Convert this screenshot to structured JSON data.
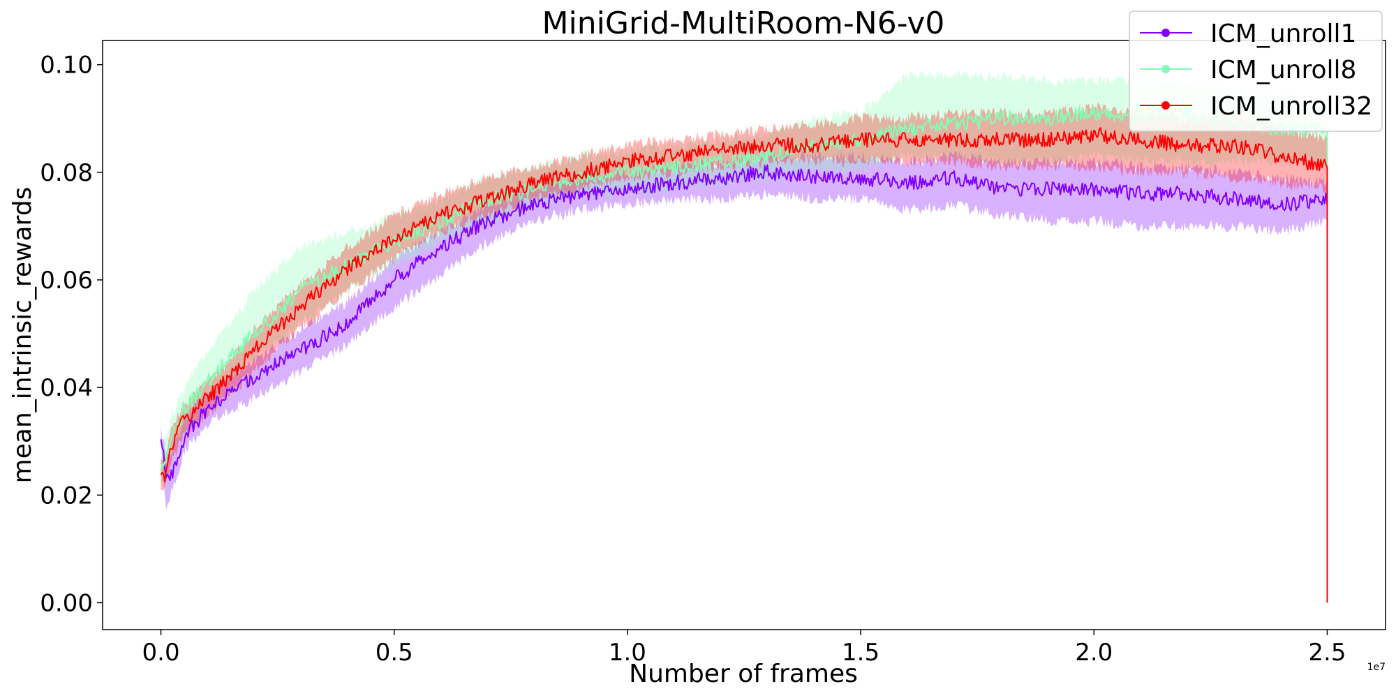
{
  "chart_data": {
    "type": "line",
    "title": "MiniGrid-MultiRoom-N6-v0",
    "xlabel": "Number of frames",
    "ylabel": "mean_intrinsic_rewards",
    "x_offset_label": "1e7",
    "xlim": [
      -0.125,
      2.625
    ],
    "ylim": [
      -0.005,
      0.1045
    ],
    "xticks": [
      0.0,
      0.5,
      1.0,
      1.5,
      2.0,
      2.5
    ],
    "xtick_labels": [
      "0.0",
      "0.5",
      "1.0",
      "1.5",
      "2.0",
      "2.5"
    ],
    "yticks": [
      0.0,
      0.02,
      0.04,
      0.06,
      0.08,
      0.1
    ],
    "ytick_labels": [
      "0.00",
      "0.02",
      "0.04",
      "0.06",
      "0.08",
      "0.10"
    ],
    "grid": false,
    "legend_position": "top-right",
    "series": [
      {
        "name": "ICM_unroll1",
        "color": "#8000ff",
        "x": [
          0.0,
          0.01,
          0.02,
          0.05,
          0.1,
          0.15,
          0.2,
          0.3,
          0.4,
          0.5,
          0.6,
          0.7,
          0.8,
          0.9,
          1.0,
          1.1,
          1.2,
          1.3,
          1.4,
          1.5,
          1.6,
          1.7,
          1.8,
          1.9,
          2.0,
          2.1,
          2.2,
          2.3,
          2.4,
          2.5
        ],
        "values": [
          0.031,
          0.024,
          0.023,
          0.031,
          0.036,
          0.039,
          0.042,
          0.047,
          0.052,
          0.06,
          0.066,
          0.071,
          0.074,
          0.076,
          0.077,
          0.078,
          0.079,
          0.08,
          0.079,
          0.079,
          0.078,
          0.079,
          0.077,
          0.077,
          0.077,
          0.076,
          0.076,
          0.075,
          0.074,
          0.075
        ],
        "lower": [
          0.03,
          0.018,
          0.02,
          0.028,
          0.033,
          0.036,
          0.038,
          0.043,
          0.048,
          0.055,
          0.061,
          0.067,
          0.071,
          0.073,
          0.074,
          0.075,
          0.075,
          0.076,
          0.075,
          0.075,
          0.073,
          0.074,
          0.072,
          0.071,
          0.071,
          0.07,
          0.07,
          0.07,
          0.069,
          0.071
        ],
        "upper": [
          0.032,
          0.028,
          0.027,
          0.034,
          0.039,
          0.042,
          0.045,
          0.051,
          0.056,
          0.064,
          0.069,
          0.074,
          0.077,
          0.079,
          0.08,
          0.081,
          0.082,
          0.083,
          0.083,
          0.083,
          0.082,
          0.083,
          0.082,
          0.082,
          0.082,
          0.081,
          0.081,
          0.08,
          0.079,
          0.078
        ]
      },
      {
        "name": "ICM_unroll8",
        "color": "#80ffb4",
        "x": [
          0.0,
          0.01,
          0.02,
          0.05,
          0.1,
          0.15,
          0.2,
          0.3,
          0.4,
          0.5,
          0.6,
          0.7,
          0.8,
          0.9,
          1.0,
          1.1,
          1.2,
          1.3,
          1.4,
          1.5,
          1.6,
          1.7,
          1.8,
          1.9,
          2.0,
          2.1,
          2.2,
          2.3,
          2.4,
          2.5
        ],
        "values": [
          0.025,
          0.027,
          0.03,
          0.036,
          0.041,
          0.046,
          0.05,
          0.058,
          0.063,
          0.067,
          0.071,
          0.075,
          0.077,
          0.079,
          0.08,
          0.081,
          0.082,
          0.083,
          0.085,
          0.086,
          0.088,
          0.089,
          0.09,
          0.09,
          0.091,
          0.09,
          0.09,
          0.089,
          0.088,
          0.088
        ],
        "lower": [
          0.022,
          0.024,
          0.027,
          0.032,
          0.037,
          0.041,
          0.045,
          0.052,
          0.058,
          0.063,
          0.067,
          0.071,
          0.074,
          0.076,
          0.076,
          0.077,
          0.078,
          0.079,
          0.08,
          0.081,
          0.083,
          0.083,
          0.082,
          0.082,
          0.083,
          0.082,
          0.082,
          0.082,
          0.082,
          0.082
        ],
        "upper": [
          0.029,
          0.031,
          0.034,
          0.04,
          0.047,
          0.052,
          0.058,
          0.066,
          0.069,
          0.072,
          0.075,
          0.079,
          0.081,
          0.083,
          0.084,
          0.085,
          0.086,
          0.087,
          0.09,
          0.091,
          0.098,
          0.098,
          0.098,
          0.097,
          0.097,
          0.097,
          0.096,
          0.095,
          0.094,
          0.093
        ]
      },
      {
        "name": "ICM_unroll32",
        "color": "#ff0000",
        "x": [
          0.0,
          0.01,
          0.02,
          0.05,
          0.1,
          0.15,
          0.2,
          0.3,
          0.4,
          0.5,
          0.6,
          0.7,
          0.8,
          0.9,
          1.0,
          1.1,
          1.2,
          1.3,
          1.4,
          1.5,
          1.6,
          1.7,
          1.8,
          1.9,
          2.0,
          2.1,
          2.2,
          2.3,
          2.4,
          2.5
        ],
        "values": [
          0.024,
          0.023,
          0.029,
          0.034,
          0.038,
          0.042,
          0.047,
          0.055,
          0.062,
          0.068,
          0.072,
          0.075,
          0.078,
          0.08,
          0.082,
          0.083,
          0.084,
          0.085,
          0.085,
          0.086,
          0.086,
          0.086,
          0.086,
          0.086,
          0.087,
          0.086,
          0.085,
          0.085,
          0.083,
          0.081
        ],
        "lower": [
          0.022,
          0.021,
          0.026,
          0.031,
          0.035,
          0.039,
          0.043,
          0.051,
          0.058,
          0.064,
          0.069,
          0.072,
          0.075,
          0.077,
          0.079,
          0.08,
          0.081,
          0.082,
          0.082,
          0.082,
          0.082,
          0.082,
          0.081,
          0.081,
          0.081,
          0.08,
          0.08,
          0.079,
          0.078,
          0.077
        ],
        "upper": [
          0.027,
          0.026,
          0.032,
          0.037,
          0.041,
          0.045,
          0.051,
          0.059,
          0.066,
          0.072,
          0.076,
          0.079,
          0.081,
          0.083,
          0.085,
          0.086,
          0.087,
          0.088,
          0.089,
          0.09,
          0.09,
          0.091,
          0.091,
          0.091,
          0.092,
          0.091,
          0.09,
          0.09,
          0.088,
          0.086
        ]
      }
    ]
  }
}
